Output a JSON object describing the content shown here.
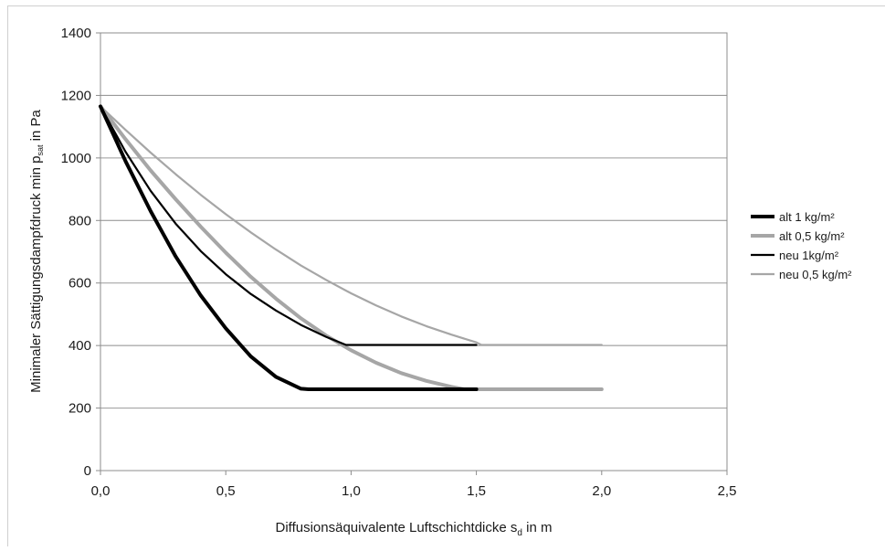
{
  "chart_data": {
    "type": "line",
    "title": "",
    "xlabel": "Diffusionsäquivalente Luftschichtdicke",
    "xlabel_symbol": "s",
    "xlabel_subscript": "d",
    "xlabel_unit": " in m",
    "ylabel": "Minimaler Sättigungsdampfdruck min p",
    "ylabel_subscript": "sat",
    "ylabel_unit": " in Pa",
    "xlim": [
      0,
      2.5
    ],
    "ylim": [
      0,
      1400
    ],
    "x_ticks": [
      {
        "value": 0,
        "label": "0,0"
      },
      {
        "value": 0.5,
        "label": "0,5"
      },
      {
        "value": 1.0,
        "label": "1,0"
      },
      {
        "value": 1.5,
        "label": "1,5"
      },
      {
        "value": 2.0,
        "label": "2,0"
      },
      {
        "value": 2.5,
        "label": "2,5"
      }
    ],
    "y_ticks": [
      {
        "value": 0,
        "label": "0"
      },
      {
        "value": 200,
        "label": "200"
      },
      {
        "value": 400,
        "label": "400"
      },
      {
        "value": 600,
        "label": "600"
      },
      {
        "value": 800,
        "label": "800"
      },
      {
        "value": 1000,
        "label": "1000"
      },
      {
        "value": 1200,
        "label": "1200"
      },
      {
        "value": 1400,
        "label": "1400"
      }
    ],
    "grid": "horizontal",
    "legend_position": "right",
    "series": [
      {
        "name": "alt 1 kg/m²",
        "color": "#000000",
        "width": "thick",
        "points": [
          [
            0,
            1165
          ],
          [
            0.1,
            990
          ],
          [
            0.2,
            830
          ],
          [
            0.3,
            685
          ],
          [
            0.4,
            560
          ],
          [
            0.5,
            455
          ],
          [
            0.6,
            365
          ],
          [
            0.7,
            300
          ],
          [
            0.8,
            262
          ],
          [
            0.83,
            260
          ],
          [
            1.0,
            260
          ],
          [
            1.5,
            260
          ]
        ]
      },
      {
        "name": "alt 0,5 kg/m²",
        "color": "#a6a6a6",
        "width": "thick",
        "points": [
          [
            0,
            1165
          ],
          [
            0.1,
            1060
          ],
          [
            0.2,
            960
          ],
          [
            0.3,
            868
          ],
          [
            0.4,
            780
          ],
          [
            0.5,
            697
          ],
          [
            0.6,
            620
          ],
          [
            0.7,
            550
          ],
          [
            0.8,
            487
          ],
          [
            0.9,
            432
          ],
          [
            1.0,
            385
          ],
          [
            1.1,
            345
          ],
          [
            1.2,
            312
          ],
          [
            1.3,
            287
          ],
          [
            1.4,
            268
          ],
          [
            1.45,
            260
          ],
          [
            2.0,
            260
          ]
        ]
      },
      {
        "name": "neu 1kg/m²",
        "color": "#000000",
        "width": "thin",
        "points": [
          [
            0,
            1165
          ],
          [
            0.1,
            1020
          ],
          [
            0.2,
            895
          ],
          [
            0.3,
            790
          ],
          [
            0.4,
            702
          ],
          [
            0.5,
            628
          ],
          [
            0.6,
            565
          ],
          [
            0.7,
            512
          ],
          [
            0.8,
            466
          ],
          [
            0.9,
            428
          ],
          [
            0.98,
            402
          ],
          [
            1.0,
            402
          ],
          [
            1.5,
            402
          ]
        ]
      },
      {
        "name": "neu 0,5 kg/m²",
        "color": "#a6a6a6",
        "width": "thin",
        "points": [
          [
            0,
            1165
          ],
          [
            0.1,
            1090
          ],
          [
            0.2,
            1017
          ],
          [
            0.3,
            948
          ],
          [
            0.4,
            882
          ],
          [
            0.5,
            820
          ],
          [
            0.6,
            762
          ],
          [
            0.7,
            707
          ],
          [
            0.8,
            656
          ],
          [
            0.9,
            610
          ],
          [
            1.0,
            567
          ],
          [
            1.1,
            528
          ],
          [
            1.2,
            493
          ],
          [
            1.3,
            462
          ],
          [
            1.4,
            435
          ],
          [
            1.5,
            410
          ],
          [
            1.52,
            402
          ],
          [
            2.0,
            402
          ]
        ]
      }
    ]
  }
}
